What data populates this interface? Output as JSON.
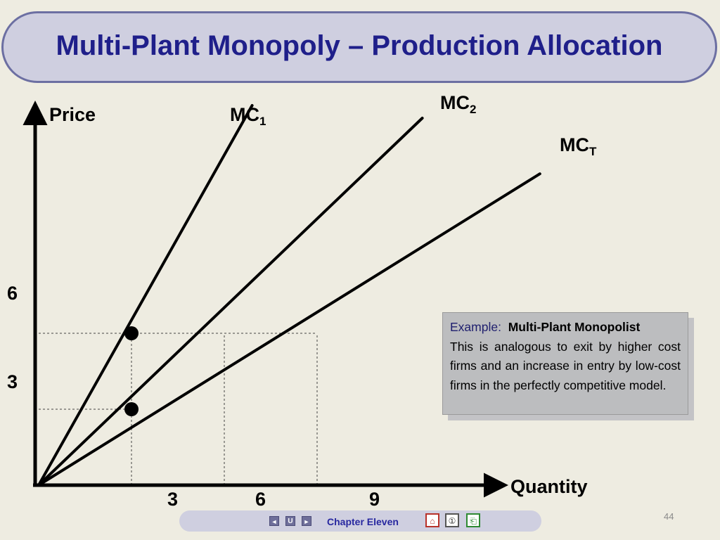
{
  "title": "Multi-Plant Monopoly – Production Allocation",
  "chart_data": {
    "type": "line",
    "ylabel": "Price",
    "xlabel": "Quantity",
    "series": [
      {
        "name": "MC1",
        "label_main": "MC",
        "label_sub": "1",
        "x": [
          0,
          6.9
        ],
        "y": [
          0,
          15
        ]
      },
      {
        "name": "MC2",
        "label_main": "MC",
        "label_sub": "2",
        "x": [
          0,
          12.4
        ],
        "y": [
          0,
          14.5
        ]
      },
      {
        "name": "MCT",
        "label_main": "MC",
        "label_sub": "T",
        "x": [
          0,
          16.2
        ],
        "y": [
          0,
          12.3
        ]
      }
    ],
    "points": [
      {
        "x": 3,
        "y": 6
      },
      {
        "x": 3,
        "y": 3
      }
    ],
    "guides": {
      "horizontal": [
        {
          "y": 6,
          "x_end": 9
        },
        {
          "y": 3,
          "x_end": 3
        }
      ],
      "vertical": [
        {
          "x": 3,
          "y_end": 6
        },
        {
          "x": 6,
          "y_end": 6
        },
        {
          "x": 9,
          "y_end": 6
        }
      ]
    },
    "x_ticks": [
      "3",
      "6",
      "9"
    ],
    "y_ticks": [
      "6",
      "3"
    ],
    "xlim": [
      0,
      17
    ],
    "ylim": [
      0,
      15
    ]
  },
  "example_box": {
    "key": "Example:",
    "heading": "Multi-Plant Monopolist",
    "body": "This is analogous to exit by higher cost firms and an increase in entry by low-cost firms in the perfectly competitive model."
  },
  "footer": {
    "chapter": "Chapter Eleven",
    "prev_glyph": "◄",
    "return_glyph": "U",
    "next_glyph": "►",
    "home_glyph": "⌂",
    "info_glyph": "①",
    "exit_glyph": "⎗"
  },
  "page_number": "44"
}
